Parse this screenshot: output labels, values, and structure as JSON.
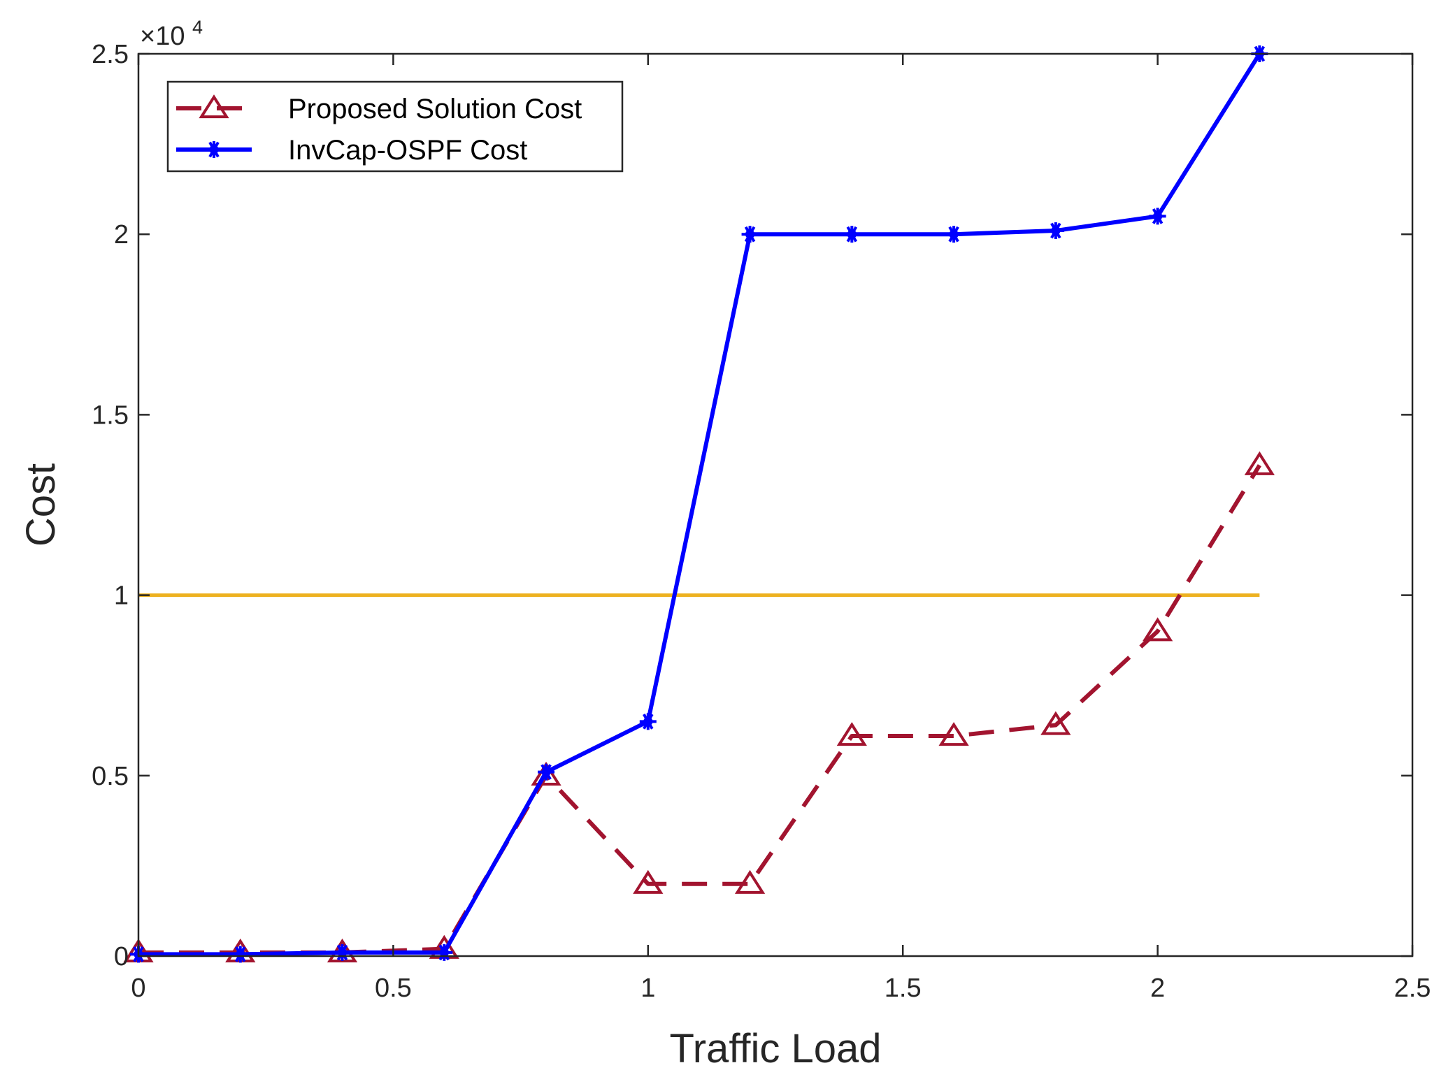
{
  "chart_data": {
    "type": "line",
    "xlabel": "Traffic Load",
    "ylabel": "Cost",
    "xlim": [
      0,
      2.5
    ],
    "ylim": [
      0,
      25000
    ],
    "x_ticks": [
      0,
      0.5,
      1,
      1.5,
      2,
      2.5
    ],
    "x_tick_labels": [
      "0",
      "0.5",
      "1",
      "1.5",
      "2",
      "2.5"
    ],
    "y_ticks": [
      0,
      5000,
      10000,
      15000,
      20000,
      25000
    ],
    "y_tick_labels": [
      "0",
      "0.5",
      "1",
      "1.5",
      "2",
      "2.5"
    ],
    "y_exponent_base": "×10",
    "y_exponent_power": "4",
    "grid": false,
    "legend_position": "top-left",
    "x": [
      0,
      0.2,
      0.4,
      0.6,
      0.8,
      1.0,
      1.2,
      1.4,
      1.6,
      1.8,
      2.0,
      2.2
    ],
    "series": [
      {
        "name": "Proposed Solution Cost",
        "color": "#A2142F",
        "line_style": "dashed",
        "marker": "triangle",
        "values": [
          100,
          100,
          100,
          200,
          5000,
          2000,
          2000,
          6100,
          6100,
          6400,
          9000,
          13600
        ]
      },
      {
        "name": "InvCap-OSPF Cost",
        "color": "#0000FF",
        "line_style": "solid",
        "marker": "asterisk",
        "values": [
          50,
          50,
          100,
          100,
          5100,
          6500,
          20000,
          20000,
          20000,
          20100,
          20500,
          25000
        ]
      }
    ],
    "reference_line": {
      "color": "#EDB120",
      "y": 10000,
      "x_range": [
        0,
        2.2
      ]
    }
  }
}
